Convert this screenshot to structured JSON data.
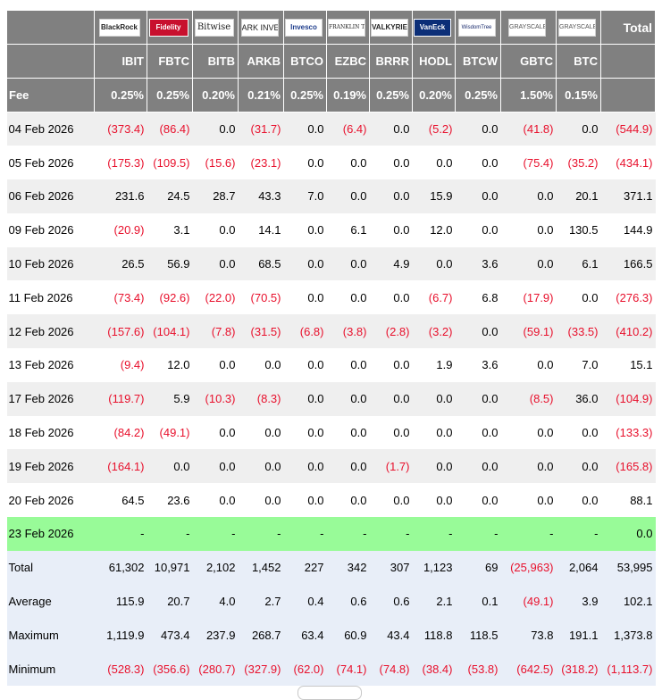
{
  "header": {
    "total_label": "Total",
    "fee_label": "Fee",
    "funds": [
      {
        "logo": "BlackRock",
        "ticker": "IBIT",
        "fee": "0.25%"
      },
      {
        "logo": "Fidelity",
        "ticker": "FBTC",
        "fee": "0.25%"
      },
      {
        "logo": "Bitwise",
        "ticker": "BITB",
        "fee": "0.20%"
      },
      {
        "logo": "ARK INVEST",
        "ticker": "ARKB",
        "fee": "0.21%"
      },
      {
        "logo": "Invesco",
        "ticker": "BTCO",
        "fee": "0.25%"
      },
      {
        "logo": "FRANKLIN TEMPLETON",
        "ticker": "EZBC",
        "fee": "0.19%"
      },
      {
        "logo": "VALKYRIE",
        "ticker": "BRRR",
        "fee": "0.25%"
      },
      {
        "logo": "VanEck",
        "ticker": "HODL",
        "fee": "0.20%"
      },
      {
        "logo": "WisdomTree",
        "ticker": "BTCW",
        "fee": "0.25%"
      },
      {
        "logo": "GRAYSCALE",
        "ticker": "GBTC",
        "fee": "1.50%"
      },
      {
        "logo": "GRAYSCALE",
        "ticker": "BTC",
        "fee": "0.15%"
      }
    ]
  },
  "rows": [
    {
      "date": "04 Feb 2026",
      "values": [
        "(373.4)",
        "(86.4)",
        "0.0",
        "(31.7)",
        "0.0",
        "(6.4)",
        "0.0",
        "(5.2)",
        "0.0",
        "(41.8)",
        "0.0",
        "(544.9)"
      ]
    },
    {
      "date": "05 Feb 2026",
      "values": [
        "(175.3)",
        "(109.5)",
        "(15.6)",
        "(23.1)",
        "0.0",
        "0.0",
        "0.0",
        "0.0",
        "0.0",
        "(75.4)",
        "(35.2)",
        "(434.1)"
      ]
    },
    {
      "date": "06 Feb 2026",
      "values": [
        "231.6",
        "24.5",
        "28.7",
        "43.3",
        "7.0",
        "0.0",
        "0.0",
        "15.9",
        "0.0",
        "0.0",
        "20.1",
        "371.1"
      ]
    },
    {
      "date": "09 Feb 2026",
      "values": [
        "(20.9)",
        "3.1",
        "0.0",
        "14.1",
        "0.0",
        "6.1",
        "0.0",
        "12.0",
        "0.0",
        "0.0",
        "130.5",
        "144.9"
      ]
    },
    {
      "date": "10 Feb 2026",
      "values": [
        "26.5",
        "56.9",
        "0.0",
        "68.5",
        "0.0",
        "0.0",
        "4.9",
        "0.0",
        "3.6",
        "0.0",
        "6.1",
        "166.5"
      ]
    },
    {
      "date": "11 Feb 2026",
      "values": [
        "(73.4)",
        "(92.6)",
        "(22.0)",
        "(70.5)",
        "0.0",
        "0.0",
        "0.0",
        "(6.7)",
        "6.8",
        "(17.9)",
        "0.0",
        "(276.3)"
      ]
    },
    {
      "date": "12 Feb 2026",
      "values": [
        "(157.6)",
        "(104.1)",
        "(7.8)",
        "(31.5)",
        "(6.8)",
        "(3.8)",
        "(2.8)",
        "(3.2)",
        "0.0",
        "(59.1)",
        "(33.5)",
        "(410.2)"
      ]
    },
    {
      "date": "13 Feb 2026",
      "values": [
        "(9.4)",
        "12.0",
        "0.0",
        "0.0",
        "0.0",
        "0.0",
        "0.0",
        "1.9",
        "3.6",
        "0.0",
        "7.0",
        "15.1"
      ]
    },
    {
      "date": "17 Feb 2026",
      "values": [
        "(119.7)",
        "5.9",
        "(10.3)",
        "(8.3)",
        "0.0",
        "0.0",
        "0.0",
        "0.0",
        "0.0",
        "(8.5)",
        "36.0",
        "(104.9)"
      ]
    },
    {
      "date": "18 Feb 2026",
      "values": [
        "(84.2)",
        "(49.1)",
        "0.0",
        "0.0",
        "0.0",
        "0.0",
        "0.0",
        "0.0",
        "0.0",
        "0.0",
        "0.0",
        "(133.3)"
      ]
    },
    {
      "date": "19 Feb 2026",
      "values": [
        "(164.1)",
        "0.0",
        "0.0",
        "0.0",
        "0.0",
        "0.0",
        "(1.7)",
        "0.0",
        "0.0",
        "0.0",
        "0.0",
        "(165.8)"
      ]
    },
    {
      "date": "20 Feb 2026",
      "values": [
        "64.5",
        "23.6",
        "0.0",
        "0.0",
        "0.0",
        "0.0",
        "0.0",
        "0.0",
        "0.0",
        "0.0",
        "0.0",
        "88.1"
      ]
    },
    {
      "date": "23 Feb 2026",
      "values": [
        "-",
        "-",
        "-",
        "-",
        "-",
        "-",
        "-",
        "-",
        "-",
        "-",
        "-",
        "0.0"
      ],
      "highlight": true
    }
  ],
  "summary": [
    {
      "label": "Total",
      "values": [
        "61,302",
        "10,971",
        "2,102",
        "1,452",
        "227",
        "342",
        "307",
        "1,123",
        "69",
        "(25,963)",
        "2,064",
        "53,995"
      ]
    },
    {
      "label": "Average",
      "values": [
        "115.9",
        "20.7",
        "4.0",
        "2.7",
        "0.4",
        "0.6",
        "0.6",
        "2.1",
        "0.1",
        "(49.1)",
        "3.9",
        "102.1"
      ]
    },
    {
      "label": "Maximum",
      "values": [
        "1,119.9",
        "473.4",
        "237.9",
        "268.7",
        "63.4",
        "60.9",
        "43.4",
        "118.8",
        "118.5",
        "73.8",
        "191.1",
        "1,373.8"
      ]
    },
    {
      "label": "Minimum",
      "values": [
        "(528.3)",
        "(356.6)",
        "(280.7)",
        "(327.9)",
        "(62.0)",
        "(74.1)",
        "(74.8)",
        "(38.4)",
        "(53.8)",
        "(642.5)",
        "(318.2)",
        "(1,113.7)"
      ]
    }
  ],
  "colors": {
    "header_bg": "#808080",
    "negative": "#e8102c",
    "highlight": "#98fb98",
    "summary_bg": "#e8eef8",
    "stripe": "#efefef"
  },
  "logo_styles": [
    "blackrock",
    "fid",
    "bw",
    "ark",
    "inv",
    "ft",
    "vk",
    "vck",
    "wt",
    "gs",
    "gs"
  ]
}
